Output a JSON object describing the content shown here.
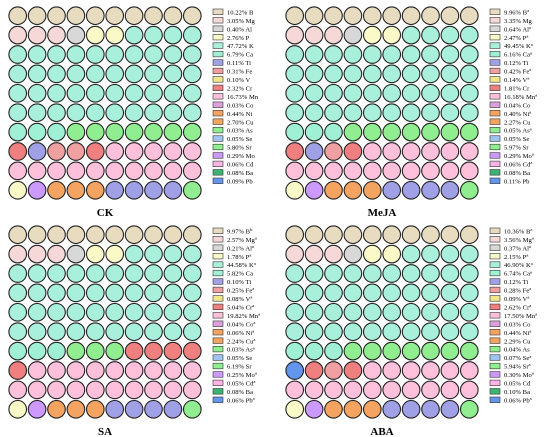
{
  "chart_data": [
    {
      "type": "waffle",
      "title": "CK",
      "legend": [
        {
          "name": "B",
          "value": "10.22%",
          "mark": "",
          "color": "#e8dcc0"
        },
        {
          "name": "Mg",
          "value": "3.05%",
          "mark": "",
          "color": "#f6d8d8"
        },
        {
          "name": "Al",
          "value": "0.40%",
          "mark": "",
          "color": "#d8d8d8"
        },
        {
          "name": "P",
          "value": "2.76%",
          "mark": "",
          "color": "#fafac8"
        },
        {
          "name": "K",
          "value": "47.72%",
          "mark": "",
          "color": "#a8f0dc"
        },
        {
          "name": "Ca",
          "value": "6.79%",
          "mark": "",
          "color": "#9ff0d4"
        },
        {
          "name": "Ti",
          "value": "0.11%",
          "mark": "",
          "color": "#a0a0e6"
        },
        {
          "name": "Fe",
          "value": "0.31%",
          "mark": "",
          "color": "#f0a0a0"
        },
        {
          "name": "V",
          "value": "0.10%",
          "mark": "",
          "color": "#f0e68c"
        },
        {
          "name": "Cr",
          "value": "2.32%",
          "mark": "",
          "color": "#f08080"
        },
        {
          "name": "Mn",
          "value": "16.73%",
          "mark": "",
          "color": "#ffc0dc"
        },
        {
          "name": "Co",
          "value": "0.03%",
          "mark": "",
          "color": "#dda0dd"
        },
        {
          "name": "Ni",
          "value": "0.44%",
          "mark": "",
          "color": "#f4a460"
        },
        {
          "name": "Cu",
          "value": "2.70%",
          "mark": "",
          "color": "#f4a460"
        },
        {
          "name": "As",
          "value": "0.03%",
          "mark": "",
          "color": "#90ee90"
        },
        {
          "name": "Se",
          "value": "0.05%",
          "mark": "",
          "color": "#a0c4f0"
        },
        {
          "name": "Sr",
          "value": "5.80%",
          "mark": "",
          "color": "#90ee90"
        },
        {
          "name": "Mo",
          "value": "0.29%",
          "mark": "",
          "color": "#cc99ff"
        },
        {
          "name": "Cd",
          "value": "0.06%",
          "mark": "",
          "color": "#ffb6e6"
        },
        {
          "name": "Ba",
          "value": "0.08%",
          "mark": "",
          "color": "#3cb371"
        },
        {
          "name": "Pb",
          "value": "0.09%",
          "mark": "",
          "color": "#6495ed"
        }
      ],
      "grid": [
        [
          "B",
          "B",
          "B",
          "B",
          "B",
          "B",
          "B",
          "B",
          "B",
          "B"
        ],
        [
          "Mg",
          "Mg",
          "Mg",
          "Al",
          "P",
          "P",
          "K",
          "K",
          "K",
          "K"
        ],
        [
          "K",
          "K",
          "K",
          "K",
          "K",
          "K",
          "K",
          "K",
          "K",
          "K"
        ],
        [
          "K",
          "K",
          "K",
          "K",
          "K",
          "K",
          "K",
          "K",
          "K",
          "K"
        ],
        [
          "K",
          "K",
          "K",
          "K",
          "K",
          "K",
          "K",
          "K",
          "K",
          "K"
        ],
        [
          "K",
          "K",
          "K",
          "K",
          "K",
          "K",
          "K",
          "K",
          "K",
          "K"
        ],
        [
          "Ca",
          "Ca",
          "Ca",
          "Sr",
          "Sr",
          "Sr",
          "Sr",
          "Sr",
          "Sr",
          "Sr"
        ],
        [
          "Cr",
          "Ti",
          "Fe",
          "Fe",
          "Cr",
          "Mn",
          "Mn",
          "Mn",
          "Mn",
          "Mn"
        ],
        [
          "Mn",
          "Mn",
          "Mn",
          "Mn",
          "Mn",
          "Mn",
          "Mn",
          "Mn",
          "Mn",
          "Mn"
        ],
        [
          "P",
          "Mo",
          "Cu",
          "Cu",
          "Cu",
          "Ti",
          "Ti",
          "Ti",
          "Ti",
          "Sr"
        ]
      ]
    },
    {
      "type": "waffle",
      "title": "MeJA",
      "legend": [
        {
          "name": "B",
          "value": "9.96%",
          "mark": "a",
          "color": "#e8dcc0"
        },
        {
          "name": "Mg",
          "value": "3.35%",
          "mark": "",
          "color": "#f6d8d8"
        },
        {
          "name": "Al",
          "value": "0.64%",
          "mark": "a",
          "color": "#d8d8d8"
        },
        {
          "name": "P",
          "value": "2.47%",
          "mark": "a",
          "color": "#fafac8"
        },
        {
          "name": "K",
          "value": "49.45%",
          "mark": "a",
          "color": "#a8f0dc"
        },
        {
          "name": "Ca",
          "value": "6.16%",
          "mark": "a",
          "color": "#9ff0d4"
        },
        {
          "name": "Ti",
          "value": "0.12%",
          "mark": "",
          "color": "#a0a0e6"
        },
        {
          "name": "Fe",
          "value": "0.42%",
          "mark": "a",
          "color": "#f0a0a0"
        },
        {
          "name": "V",
          "value": "0.14%",
          "mark": "a",
          "color": "#f0e68c"
        },
        {
          "name": "Cr",
          "value": "1.81%",
          "mark": "",
          "color": "#f08080"
        },
        {
          "name": "Mn",
          "value": "16.18%",
          "mark": "a",
          "color": "#ffc0dc"
        },
        {
          "name": "Co",
          "value": "0.04%",
          "mark": "",
          "color": "#dda0dd"
        },
        {
          "name": "Ni",
          "value": "0.40%",
          "mark": "a",
          "color": "#f4a460"
        },
        {
          "name": "Cu",
          "value": "2.27%",
          "mark": "",
          "color": "#f4a460"
        },
        {
          "name": "As",
          "value": "0.05%",
          "mark": "a",
          "color": "#90ee90"
        },
        {
          "name": "Se",
          "value": "0.05%",
          "mark": "",
          "color": "#a0c4f0"
        },
        {
          "name": "Sr",
          "value": "5.97%",
          "mark": "",
          "color": "#90ee90"
        },
        {
          "name": "Mo",
          "value": "0.29%",
          "mark": "a",
          "color": "#cc99ff"
        },
        {
          "name": "Cd",
          "value": "0.06%",
          "mark": "a",
          "color": "#ffb6e6"
        },
        {
          "name": "Ba",
          "value": "0.08%",
          "mark": "",
          "color": "#3cb371"
        },
        {
          "name": "Pb",
          "value": "0.11%",
          "mark": "",
          "color": "#6495ed"
        }
      ],
      "grid": [
        [
          "B",
          "B",
          "B",
          "B",
          "B",
          "B",
          "B",
          "B",
          "B",
          "B"
        ],
        [
          "Mg",
          "Mg",
          "Mg",
          "Al",
          "P",
          "P",
          "K",
          "K",
          "K",
          "K"
        ],
        [
          "K",
          "K",
          "K",
          "K",
          "K",
          "K",
          "K",
          "K",
          "K",
          "K"
        ],
        [
          "K",
          "K",
          "K",
          "K",
          "K",
          "K",
          "K",
          "K",
          "K",
          "K"
        ],
        [
          "K",
          "K",
          "K",
          "K",
          "K",
          "K",
          "K",
          "K",
          "K",
          "K"
        ],
        [
          "K",
          "K",
          "K",
          "K",
          "K",
          "K",
          "K",
          "K",
          "K",
          "K"
        ],
        [
          "Ca",
          "Ca",
          "Ca",
          "Sr",
          "Sr",
          "Sr",
          "Sr",
          "Sr",
          "Sr",
          "Sr"
        ],
        [
          "Cr",
          "Ti",
          "Fe",
          "Cr",
          "Mn",
          "Mn",
          "Mn",
          "Mn",
          "Mn",
          "Mn"
        ],
        [
          "Mn",
          "Mn",
          "Mn",
          "Mn",
          "Mn",
          "Mn",
          "Mn",
          "Mn",
          "Mn",
          "Mn"
        ],
        [
          "P",
          "Mo",
          "Cu",
          "Cu",
          "Cu",
          "Ti",
          "Ti",
          "Ti",
          "Ti",
          "Sr"
        ]
      ]
    },
    {
      "type": "waffle",
      "title": "SA",
      "legend": [
        {
          "name": "B",
          "value": "9.97%",
          "mark": "b",
          "color": "#e8dcc0"
        },
        {
          "name": "Mg",
          "value": "2.57%",
          "mark": "a",
          "color": "#f6d8d8"
        },
        {
          "name": "Al",
          "value": "0.21%",
          "mark": "a",
          "color": "#d8d8d8"
        },
        {
          "name": "P",
          "value": "1.78%",
          "mark": "a",
          "color": "#fafac8"
        },
        {
          "name": "K",
          "value": "44.58%",
          "mark": "a",
          "color": "#a8f0dc"
        },
        {
          "name": "Ca",
          "value": "5.82%",
          "mark": "",
          "color": "#9ff0d4"
        },
        {
          "name": "Ti",
          "value": "0.10%",
          "mark": "",
          "color": "#a0a0e6"
        },
        {
          "name": "Fe",
          "value": "0.25%",
          "mark": "a",
          "color": "#f0a0a0"
        },
        {
          "name": "V",
          "value": "0.08%",
          "mark": "a",
          "color": "#f0e68c"
        },
        {
          "name": "Cr",
          "value": "5.04%",
          "mark": "a",
          "color": "#f08080"
        },
        {
          "name": "Mn",
          "value": "19.82%",
          "mark": "a",
          "color": "#ffc0dc"
        },
        {
          "name": "Co",
          "value": "0.04%",
          "mark": "a",
          "color": "#dda0dd"
        },
        {
          "name": "Ni",
          "value": "0.06%",
          "mark": "a",
          "color": "#f4a460"
        },
        {
          "name": "Cu",
          "value": "2.24%",
          "mark": "a",
          "color": "#f4a460"
        },
        {
          "name": "As",
          "value": "0.03%",
          "mark": "a",
          "color": "#90ee90"
        },
        {
          "name": "Se",
          "value": "0.05%",
          "mark": "",
          "color": "#a0c4f0"
        },
        {
          "name": "Sr",
          "value": "6.19%",
          "mark": "",
          "color": "#90ee90"
        },
        {
          "name": "Mo",
          "value": "0.25%",
          "mark": "a",
          "color": "#cc99ff"
        },
        {
          "name": "Cd",
          "value": "0.05%",
          "mark": "a",
          "color": "#ffb6e6"
        },
        {
          "name": "Ba",
          "value": "0.08%",
          "mark": "",
          "color": "#3cb371"
        },
        {
          "name": "Pb",
          "value": "0.06%",
          "mark": "a",
          "color": "#6495ed"
        }
      ],
      "grid": [
        [
          "B",
          "B",
          "B",
          "B",
          "B",
          "B",
          "B",
          "B",
          "B",
          "B"
        ],
        [
          "Mg",
          "Mg",
          "Mg",
          "Al",
          "P",
          "P",
          "K",
          "K",
          "K",
          "K"
        ],
        [
          "K",
          "K",
          "K",
          "K",
          "K",
          "K",
          "K",
          "K",
          "K",
          "K"
        ],
        [
          "K",
          "K",
          "K",
          "K",
          "K",
          "K",
          "K",
          "K",
          "K",
          "K"
        ],
        [
          "K",
          "K",
          "K",
          "K",
          "K",
          "K",
          "K",
          "K",
          "K",
          "K"
        ],
        [
          "K",
          "K",
          "K",
          "K",
          "K",
          "K",
          "K",
          "K",
          "K",
          "K"
        ],
        [
          "Ca",
          "Ca",
          "Ca",
          "Sr",
          "Sr",
          "Sr",
          "Cr",
          "Cr",
          "Cr",
          "Cr"
        ],
        [
          "Cr",
          "Mn",
          "Mn",
          "Mn",
          "Mn",
          "Mn",
          "Mn",
          "Mn",
          "Mn",
          "Mn"
        ],
        [
          "Mn",
          "Mn",
          "Mn",
          "Mn",
          "Mn",
          "Mn",
          "Mn",
          "Mn",
          "Mn",
          "Mn"
        ],
        [
          "P",
          "Mo",
          "Cu",
          "Cu",
          "Cu",
          "Ti",
          "Ti",
          "Ti",
          "Ti",
          "Sr"
        ]
      ]
    },
    {
      "type": "waffle",
      "title": "ABA",
      "legend": [
        {
          "name": "B",
          "value": "10.36%",
          "mark": "a",
          "color": "#e8dcc0"
        },
        {
          "name": "Mg",
          "value": "3.56%",
          "mark": "a",
          "color": "#f6d8d8"
        },
        {
          "name": "Al",
          "value": "0.37%",
          "mark": "a",
          "color": "#d8d8d8"
        },
        {
          "name": "P",
          "value": "2.15%",
          "mark": "a",
          "color": "#fafac8"
        },
        {
          "name": "K",
          "value": "46.90%",
          "mark": "a",
          "color": "#a8f0dc"
        },
        {
          "name": "Ca",
          "value": "6.74%",
          "mark": "a",
          "color": "#9ff0d4"
        },
        {
          "name": "Ti",
          "value": "0.12%",
          "mark": "",
          "color": "#a0a0e6"
        },
        {
          "name": "Fe",
          "value": "0.28%",
          "mark": "a",
          "color": "#f0a0a0"
        },
        {
          "name": "V",
          "value": "0.09%",
          "mark": "a",
          "color": "#f0e68c"
        },
        {
          "name": "Cr",
          "value": "2.62%",
          "mark": "a",
          "color": "#f08080"
        },
        {
          "name": "Mn",
          "value": "17.50%",
          "mark": "a",
          "color": "#ffc0dc"
        },
        {
          "name": "Co",
          "value": "0.03%",
          "mark": "",
          "color": "#dda0dd"
        },
        {
          "name": "Ni",
          "value": "0.44%",
          "mark": "a",
          "color": "#f4a460"
        },
        {
          "name": "Cu",
          "value": "2.29%",
          "mark": "",
          "color": "#f4a460"
        },
        {
          "name": "As",
          "value": "0.04%",
          "mark": "",
          "color": "#90ee90"
        },
        {
          "name": "Se",
          "value": "0.07%",
          "mark": "a",
          "color": "#a0c4f0"
        },
        {
          "name": "Sr",
          "value": "5.94%",
          "mark": "a",
          "color": "#90ee90"
        },
        {
          "name": "Mo",
          "value": "0.30%",
          "mark": "a",
          "color": "#cc99ff"
        },
        {
          "name": "Cd",
          "value": "0.05%",
          "mark": "",
          "color": "#ffb6e6"
        },
        {
          "name": "Ba",
          "value": "0.10%",
          "mark": "",
          "color": "#3cb371"
        },
        {
          "name": "Pb",
          "value": "0.06%",
          "mark": "a",
          "color": "#6495ed"
        }
      ],
      "grid": [
        [
          "B",
          "B",
          "B",
          "B",
          "B",
          "B",
          "B",
          "B",
          "B",
          "B"
        ],
        [
          "Mg",
          "Mg",
          "Mg",
          "Al",
          "P",
          "P",
          "K",
          "K",
          "K",
          "K"
        ],
        [
          "K",
          "K",
          "K",
          "K",
          "K",
          "K",
          "K",
          "K",
          "K",
          "K"
        ],
        [
          "K",
          "K",
          "K",
          "K",
          "K",
          "K",
          "K",
          "K",
          "K",
          "K"
        ],
        [
          "K",
          "K",
          "K",
          "K",
          "K",
          "K",
          "K",
          "K",
          "K",
          "K"
        ],
        [
          "K",
          "K",
          "K",
          "K",
          "K",
          "K",
          "K",
          "K",
          "K",
          "K"
        ],
        [
          "Ca",
          "Ca",
          "Ca",
          "Sr",
          "Sr",
          "Sr",
          "Sr",
          "Sr",
          "Sr",
          "Sr"
        ],
        [
          "Pb",
          "Cr",
          "Fe",
          "Cr",
          "Mn",
          "Mn",
          "Mn",
          "Mn",
          "Mn",
          "Mn"
        ],
        [
          "Mn",
          "Mn",
          "Mn",
          "Mn",
          "Mn",
          "Mn",
          "Mn",
          "Mn",
          "Mn",
          "Mn"
        ],
        [
          "P",
          "Mo",
          "Cu",
          "Cu",
          "Cu",
          "Ti",
          "Ti",
          "Ti",
          "Ti",
          "Sr"
        ]
      ]
    }
  ]
}
